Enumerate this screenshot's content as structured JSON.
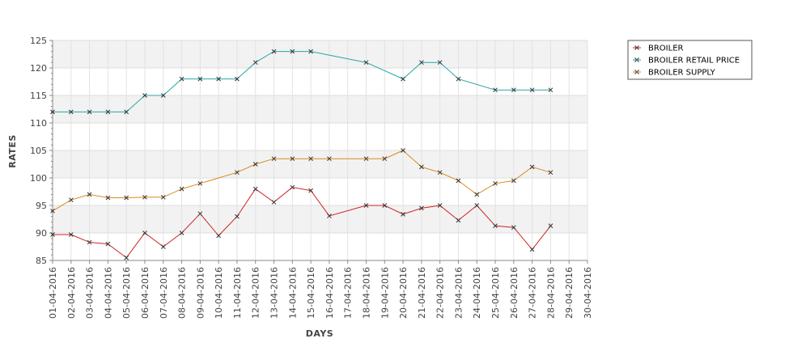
{
  "chart_data": {
    "type": "line",
    "title": "",
    "xlabel": "DAYS",
    "ylabel": "RATES",
    "ylim": [
      85,
      125
    ],
    "yticks": [
      85,
      90,
      95,
      100,
      105,
      110,
      115,
      120,
      125
    ],
    "grid": true,
    "legend_position": "top-right",
    "x": [
      "01-04-2016",
      "02-04-2016",
      "03-04-2016",
      "04-04-2016",
      "05-04-2016",
      "06-04-2016",
      "07-04-2016",
      "08-04-2016",
      "09-04-2016",
      "10-04-2016",
      "11-04-2016",
      "12-04-2016",
      "13-04-2016",
      "14-04-2016",
      "15-04-2016",
      "16-04-2016",
      "17-04-2016",
      "18-04-2016",
      "19-04-2016",
      "20-04-2016",
      "21-04-2016",
      "22-04-2016",
      "23-04-2016",
      "24-04-2016",
      "25-04-2016",
      "26-04-2016",
      "27-04-2016",
      "28-04-2016",
      "29-04-2016",
      "30-04-2016"
    ],
    "series": [
      {
        "name": "BROILER",
        "color": "#cc2222",
        "values": [
          89.7,
          89.7,
          88.3,
          88.0,
          85.5,
          90.0,
          87.5,
          90.0,
          93.5,
          89.5,
          93.0,
          98.0,
          95.6,
          98.3,
          97.7,
          93.1,
          null,
          95.0,
          95.0,
          93.4,
          94.5,
          95.0,
          92.3,
          95.0,
          91.3,
          91.0,
          87.0,
          91.3,
          null,
          null
        ]
      },
      {
        "name": "BROILER RETAIL PRICE",
        "color": "#2aa6a6",
        "values": [
          112,
          112,
          112,
          112,
          112,
          115,
          115,
          118,
          118,
          118,
          118,
          121,
          123,
          123,
          123,
          null,
          null,
          121,
          null,
          118,
          121,
          121,
          118,
          null,
          116,
          116,
          116,
          116,
          null,
          null
        ]
      },
      {
        "name": "BROILER SUPPLY",
        "color": "#d98a1a",
        "values": [
          94.0,
          96.0,
          97.0,
          96.4,
          96.4,
          96.5,
          96.5,
          98.0,
          99.0,
          null,
          101.0,
          102.5,
          103.5,
          103.5,
          103.5,
          103.5,
          null,
          103.5,
          103.5,
          105.0,
          102.0,
          101.0,
          99.5,
          97.0,
          99.0,
          99.5,
          102.0,
          101.0,
          null,
          null
        ]
      }
    ]
  }
}
